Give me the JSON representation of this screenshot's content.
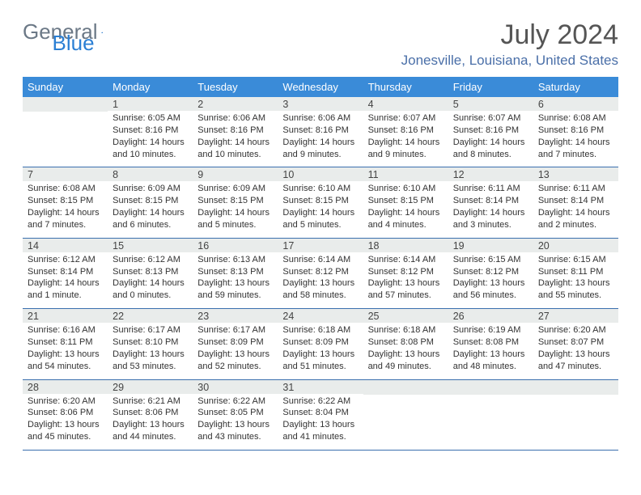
{
  "brand": {
    "word1": "General",
    "word2": "Blue"
  },
  "title": "July 2024",
  "location": "Jonesville, Louisiana, United States",
  "colors": {
    "header_bg": "#3a8bd8",
    "header_text": "#ffffff",
    "band_bg": "#e9eceb",
    "rule": "#3a6fae",
    "brand_gray": "#6b7886",
    "brand_blue": "#2b7fd4",
    "location_color": "#4a6fa8"
  },
  "dow": [
    "Sunday",
    "Monday",
    "Tuesday",
    "Wednesday",
    "Thursday",
    "Friday",
    "Saturday"
  ],
  "weeks": [
    [
      null,
      {
        "n": "1",
        "sr": "Sunrise: 6:05 AM",
        "ss": "Sunset: 8:16 PM",
        "dl": "Daylight: 14 hours and 10 minutes."
      },
      {
        "n": "2",
        "sr": "Sunrise: 6:06 AM",
        "ss": "Sunset: 8:16 PM",
        "dl": "Daylight: 14 hours and 10 minutes."
      },
      {
        "n": "3",
        "sr": "Sunrise: 6:06 AM",
        "ss": "Sunset: 8:16 PM",
        "dl": "Daylight: 14 hours and 9 minutes."
      },
      {
        "n": "4",
        "sr": "Sunrise: 6:07 AM",
        "ss": "Sunset: 8:16 PM",
        "dl": "Daylight: 14 hours and 9 minutes."
      },
      {
        "n": "5",
        "sr": "Sunrise: 6:07 AM",
        "ss": "Sunset: 8:16 PM",
        "dl": "Daylight: 14 hours and 8 minutes."
      },
      {
        "n": "6",
        "sr": "Sunrise: 6:08 AM",
        "ss": "Sunset: 8:16 PM",
        "dl": "Daylight: 14 hours and 7 minutes."
      }
    ],
    [
      {
        "n": "7",
        "sr": "Sunrise: 6:08 AM",
        "ss": "Sunset: 8:15 PM",
        "dl": "Daylight: 14 hours and 7 minutes."
      },
      {
        "n": "8",
        "sr": "Sunrise: 6:09 AM",
        "ss": "Sunset: 8:15 PM",
        "dl": "Daylight: 14 hours and 6 minutes."
      },
      {
        "n": "9",
        "sr": "Sunrise: 6:09 AM",
        "ss": "Sunset: 8:15 PM",
        "dl": "Daylight: 14 hours and 5 minutes."
      },
      {
        "n": "10",
        "sr": "Sunrise: 6:10 AM",
        "ss": "Sunset: 8:15 PM",
        "dl": "Daylight: 14 hours and 5 minutes."
      },
      {
        "n": "11",
        "sr": "Sunrise: 6:10 AM",
        "ss": "Sunset: 8:15 PM",
        "dl": "Daylight: 14 hours and 4 minutes."
      },
      {
        "n": "12",
        "sr": "Sunrise: 6:11 AM",
        "ss": "Sunset: 8:14 PM",
        "dl": "Daylight: 14 hours and 3 minutes."
      },
      {
        "n": "13",
        "sr": "Sunrise: 6:11 AM",
        "ss": "Sunset: 8:14 PM",
        "dl": "Daylight: 14 hours and 2 minutes."
      }
    ],
    [
      {
        "n": "14",
        "sr": "Sunrise: 6:12 AM",
        "ss": "Sunset: 8:14 PM",
        "dl": "Daylight: 14 hours and 1 minute."
      },
      {
        "n": "15",
        "sr": "Sunrise: 6:12 AM",
        "ss": "Sunset: 8:13 PM",
        "dl": "Daylight: 14 hours and 0 minutes."
      },
      {
        "n": "16",
        "sr": "Sunrise: 6:13 AM",
        "ss": "Sunset: 8:13 PM",
        "dl": "Daylight: 13 hours and 59 minutes."
      },
      {
        "n": "17",
        "sr": "Sunrise: 6:14 AM",
        "ss": "Sunset: 8:12 PM",
        "dl": "Daylight: 13 hours and 58 minutes."
      },
      {
        "n": "18",
        "sr": "Sunrise: 6:14 AM",
        "ss": "Sunset: 8:12 PM",
        "dl": "Daylight: 13 hours and 57 minutes."
      },
      {
        "n": "19",
        "sr": "Sunrise: 6:15 AM",
        "ss": "Sunset: 8:12 PM",
        "dl": "Daylight: 13 hours and 56 minutes."
      },
      {
        "n": "20",
        "sr": "Sunrise: 6:15 AM",
        "ss": "Sunset: 8:11 PM",
        "dl": "Daylight: 13 hours and 55 minutes."
      }
    ],
    [
      {
        "n": "21",
        "sr": "Sunrise: 6:16 AM",
        "ss": "Sunset: 8:11 PM",
        "dl": "Daylight: 13 hours and 54 minutes."
      },
      {
        "n": "22",
        "sr": "Sunrise: 6:17 AM",
        "ss": "Sunset: 8:10 PM",
        "dl": "Daylight: 13 hours and 53 minutes."
      },
      {
        "n": "23",
        "sr": "Sunrise: 6:17 AM",
        "ss": "Sunset: 8:09 PM",
        "dl": "Daylight: 13 hours and 52 minutes."
      },
      {
        "n": "24",
        "sr": "Sunrise: 6:18 AM",
        "ss": "Sunset: 8:09 PM",
        "dl": "Daylight: 13 hours and 51 minutes."
      },
      {
        "n": "25",
        "sr": "Sunrise: 6:18 AM",
        "ss": "Sunset: 8:08 PM",
        "dl": "Daylight: 13 hours and 49 minutes."
      },
      {
        "n": "26",
        "sr": "Sunrise: 6:19 AM",
        "ss": "Sunset: 8:08 PM",
        "dl": "Daylight: 13 hours and 48 minutes."
      },
      {
        "n": "27",
        "sr": "Sunrise: 6:20 AM",
        "ss": "Sunset: 8:07 PM",
        "dl": "Daylight: 13 hours and 47 minutes."
      }
    ],
    [
      {
        "n": "28",
        "sr": "Sunrise: 6:20 AM",
        "ss": "Sunset: 8:06 PM",
        "dl": "Daylight: 13 hours and 45 minutes."
      },
      {
        "n": "29",
        "sr": "Sunrise: 6:21 AM",
        "ss": "Sunset: 8:06 PM",
        "dl": "Daylight: 13 hours and 44 minutes."
      },
      {
        "n": "30",
        "sr": "Sunrise: 6:22 AM",
        "ss": "Sunset: 8:05 PM",
        "dl": "Daylight: 13 hours and 43 minutes."
      },
      {
        "n": "31",
        "sr": "Sunrise: 6:22 AM",
        "ss": "Sunset: 8:04 PM",
        "dl": "Daylight: 13 hours and 41 minutes."
      },
      null,
      null,
      null
    ]
  ]
}
